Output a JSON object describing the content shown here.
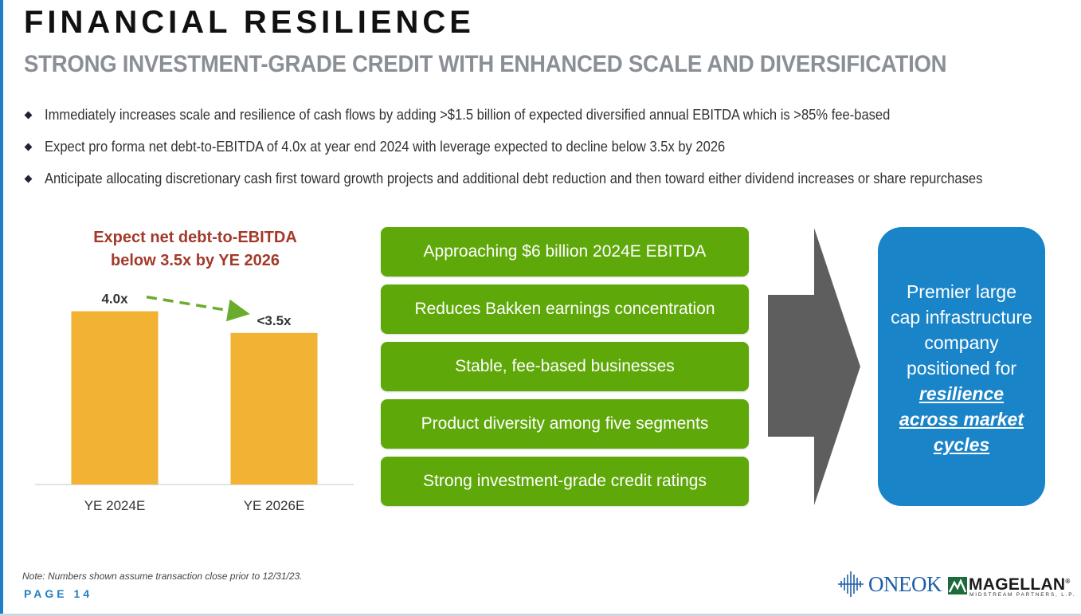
{
  "header": {
    "title": "FINANCIAL RESILIENCE",
    "subtitle": "STRONG INVESTMENT-GRADE CREDIT WITH ENHANCED SCALE AND DIVERSIFICATION"
  },
  "bullets": [
    "Immediately increases scale and resilience of cash flows by adding >$1.5 billion of expected diversified annual EBITDA which is >85% fee-based",
    "Expect pro forma net debt-to-EBITDA of 4.0x at year end 2024 with leverage expected to decline below 3.5x by 2026",
    "Anticipate allocating discretionary cash first toward growth projects and additional debt reduction and then toward either dividend increases or share repurchases"
  ],
  "chart_title": [
    "Expect net debt-to-EBITDA",
    "below 3.5x by YE 2026"
  ],
  "chart_data": {
    "type": "bar",
    "title": "Expect net debt-to-EBITDA below 3.5x by YE 2026",
    "categories": [
      "YE 2024E",
      "YE 2026E"
    ],
    "values": [
      4.0,
      3.5
    ],
    "data_labels": [
      "4.0x",
      "<3.5x"
    ],
    "xlabel": "",
    "ylabel": "",
    "ylim": [
      0,
      4.6
    ],
    "grid": false,
    "legend": "none",
    "annotation": "dashed green arrow indicating decline from 4.0x to <3.5x",
    "colors": {
      "bar": "#f2b233",
      "arrow": "#6aac2c",
      "baseline": "#d9d9d9"
    }
  },
  "pills": [
    "Approaching $6 billion 2024E EBITDA",
    "Reduces Bakken earnings concentration",
    "Stable, fee-based businesses",
    "Product diversity among five segments",
    "Strong investment-grade credit ratings"
  ],
  "result": {
    "lines": [
      "Premier large",
      "cap infrastructure",
      "company",
      "positioned for"
    ],
    "emphasis": [
      "resilience",
      "across market",
      "cycles"
    ]
  },
  "footer": {
    "note": "Note: Numbers shown assume transaction close prior to 12/31/23.",
    "page": "PAGE 14",
    "logo_oneok": "ONEOK",
    "logo_magellan": "MAGELLAN",
    "logo_magellan_sub": "MIDSTREAM PARTNERS, L.P.",
    "registered_mark": "®"
  },
  "colors": {
    "accent_blue": "#1f7fc4",
    "green": "#5fa80a",
    "chart_title_red": "#a23a2b",
    "arrow_gray": "#5e5e5e",
    "result_blue": "#1a84c9"
  }
}
